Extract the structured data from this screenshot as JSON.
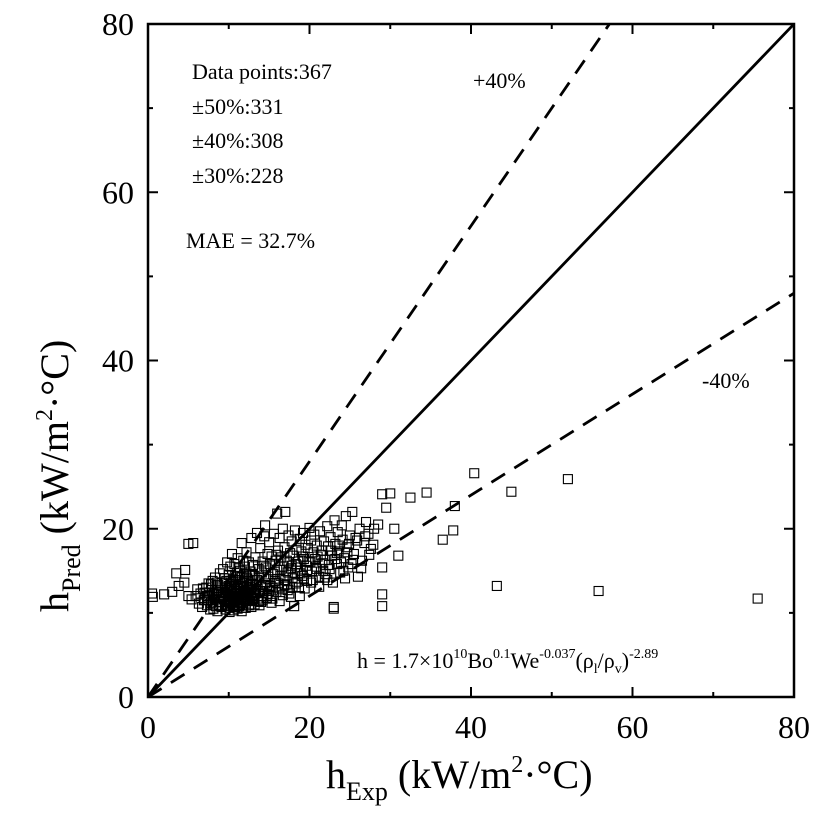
{
  "chart_data": {
    "type": "scatter",
    "x_axis": {
      "label_main": "h",
      "label_sub": "Exp",
      "label_unit_pre": " (kW/m",
      "label_sup": "2",
      "label_unit_post": "·°C)",
      "range": [
        0,
        80
      ],
      "ticks": [
        0,
        20,
        40,
        60,
        80
      ]
    },
    "y_axis": {
      "label_main": "h",
      "label_sub": "Pred",
      "label_unit_pre": " (kW/m",
      "label_sup": "2",
      "label_unit_post": "·°C)",
      "range": [
        0,
        80
      ],
      "ticks": [
        0,
        20,
        40,
        60,
        80
      ]
    },
    "grid": false,
    "annotations": {
      "data_points": "Data points:367",
      "pm50": "±50%:331",
      "pm40": "±40%:308",
      "pm30": "±30%:228",
      "mae": "MAE = 32.7%",
      "plus40": "+40%",
      "minus40": "-40%"
    },
    "equation": {
      "prefix": "h = 1.7×10",
      "exp10": "10",
      "bo": "Bo",
      "bo_exp": "0.1",
      "we": "We",
      "we_exp": "-0.037",
      "open": "(ρ",
      "sub_l": "l",
      "slash": "/ρ",
      "sub_v": "v",
      "close": ")",
      "ratio_exp": "-2.89"
    },
    "reference_lines": [
      {
        "name": "y = x",
        "slope": 1.0,
        "style": "solid"
      },
      {
        "name": "+40%",
        "slope": 1.4,
        "style": "dashed"
      },
      {
        "name": "-40%",
        "slope": 0.6,
        "style": "dashed"
      }
    ],
    "points": [
      [
        0.5,
        12.3
      ],
      [
        0.6,
        11.9
      ],
      [
        2.0,
        12.2
      ],
      [
        3.0,
        12.5
      ],
      [
        3.5,
        14.7
      ],
      [
        3.8,
        13.2
      ],
      [
        4.5,
        13.6
      ],
      [
        4.6,
        15.1
      ],
      [
        5.0,
        18.2
      ],
      [
        5.6,
        18.3
      ],
      [
        5.0,
        12.0
      ],
      [
        5.4,
        11.6
      ],
      [
        5.9,
        12.0
      ],
      [
        6.1,
        12.8
      ],
      [
        6.3,
        11.1
      ],
      [
        6.5,
        12.3
      ],
      [
        6.7,
        10.7
      ],
      [
        6.9,
        11.5
      ],
      [
        7.0,
        12.4
      ],
      [
        7.2,
        13.0
      ],
      [
        7.3,
        10.9
      ],
      [
        7.4,
        11.8
      ],
      [
        7.5,
        13.5
      ],
      [
        7.6,
        12.1
      ],
      [
        7.7,
        10.4
      ],
      [
        7.8,
        11.2
      ],
      [
        7.9,
        12.7
      ],
      [
        8.0,
        13.8
      ],
      [
        8.1,
        11.5
      ],
      [
        8.2,
        12.2
      ],
      [
        8.3,
        14.2
      ],
      [
        8.4,
        10.8
      ],
      [
        8.5,
        12.9
      ],
      [
        8.6,
        11.9
      ],
      [
        8.7,
        13.3
      ],
      [
        8.8,
        12.4
      ],
      [
        8.9,
        14.7
      ],
      [
        9.0,
        11.3
      ],
      [
        9.0,
        12.7
      ],
      [
        9.1,
        13.5
      ],
      [
        9.2,
        10.9
      ],
      [
        9.3,
        12.1
      ],
      [
        9.3,
        15.2
      ],
      [
        9.4,
        11.6
      ],
      [
        9.5,
        13.0
      ],
      [
        9.5,
        14.1
      ],
      [
        9.6,
        12.4
      ],
      [
        9.7,
        11.0
      ],
      [
        9.7,
        13.8
      ],
      [
        9.8,
        12.7
      ],
      [
        9.8,
        16.0
      ],
      [
        9.9,
        11.4
      ],
      [
        10.0,
        12.0
      ],
      [
        10.0,
        13.2
      ],
      [
        10.0,
        14.5
      ],
      [
        10.1,
        10.6
      ],
      [
        10.2,
        12.5
      ],
      [
        10.2,
        15.5
      ],
      [
        10.3,
        11.7
      ],
      [
        10.3,
        13.6
      ],
      [
        10.4,
        12.2
      ],
      [
        10.4,
        17.0
      ],
      [
        10.5,
        10.9
      ],
      [
        10.5,
        14.0
      ],
      [
        10.6,
        12.8
      ],
      [
        10.6,
        11.4
      ],
      [
        10.7,
        13.1
      ],
      [
        10.7,
        15.8
      ],
      [
        10.8,
        12.0
      ],
      [
        10.8,
        10.7
      ],
      [
        10.9,
        13.9
      ],
      [
        10.9,
        12.4
      ],
      [
        11.0,
        11.2
      ],
      [
        11.0,
        14.8
      ],
      [
        11.1,
        12.9
      ],
      [
        11.1,
        16.5
      ],
      [
        11.2,
        11.7
      ],
      [
        11.2,
        13.4
      ],
      [
        11.3,
        10.8
      ],
      [
        11.3,
        12.2
      ],
      [
        11.4,
        15.0
      ],
      [
        11.4,
        13.7
      ],
      [
        11.5,
        11.5
      ],
      [
        11.5,
        12.6
      ],
      [
        11.6,
        14.3
      ],
      [
        11.6,
        18.3
      ],
      [
        11.7,
        12.1
      ],
      [
        11.7,
        10.9
      ],
      [
        11.8,
        13.2
      ],
      [
        11.8,
        16.2
      ],
      [
        11.9,
        11.8
      ],
      [
        11.9,
        14.6
      ],
      [
        12.0,
        12.5
      ],
      [
        12.0,
        15.5
      ],
      [
        12.1,
        11.1
      ],
      [
        12.1,
        13.8
      ],
      [
        12.2,
        12.3
      ],
      [
        12.2,
        17.2
      ],
      [
        12.3,
        11.6
      ],
      [
        12.3,
        14.1
      ],
      [
        12.4,
        12.8
      ],
      [
        12.5,
        10.9
      ],
      [
        12.5,
        16.0
      ],
      [
        12.6,
        13.3
      ],
      [
        12.7,
        11.9
      ],
      [
        12.7,
        14.9
      ],
      [
        12.8,
        12.4
      ],
      [
        12.8,
        18.9
      ],
      [
        12.9,
        11.4
      ],
      [
        13.0,
        13.6
      ],
      [
        13.0,
        15.7
      ],
      [
        13.1,
        12.1
      ],
      [
        13.2,
        14.4
      ],
      [
        13.2,
        11.0
      ],
      [
        13.3,
        16.6
      ],
      [
        13.4,
        12.7
      ],
      [
        13.5,
        13.9
      ],
      [
        13.5,
        19.5
      ],
      [
        13.6,
        11.7
      ],
      [
        13.7,
        15.2
      ],
      [
        13.8,
        12.4
      ],
      [
        13.9,
        17.7
      ],
      [
        14.0,
        13.1
      ],
      [
        14.0,
        11.3
      ],
      [
        14.1,
        14.8
      ],
      [
        14.2,
        16.1
      ],
      [
        14.3,
        12.0
      ],
      [
        14.4,
        19.1
      ],
      [
        14.5,
        13.5
      ],
      [
        14.5,
        20.4
      ],
      [
        14.6,
        15.4
      ],
      [
        14.7,
        11.8
      ],
      [
        14.8,
        17.0
      ],
      [
        14.9,
        14.0
      ],
      [
        15.0,
        12.6
      ],
      [
        15.0,
        18.4
      ],
      [
        15.1,
        15.8
      ],
      [
        15.2,
        13.2
      ],
      [
        15.3,
        16.7
      ],
      [
        15.4,
        11.7
      ],
      [
        15.5,
        14.6
      ],
      [
        15.6,
        19.4
      ],
      [
        15.7,
        13.8
      ],
      [
        15.8,
        16.2
      ],
      [
        15.9,
        12.5
      ],
      [
        16.0,
        15.1
      ],
      [
        16.0,
        21.8
      ],
      [
        16.1,
        17.4
      ],
      [
        16.2,
        13.5
      ],
      [
        16.3,
        18.9
      ],
      [
        16.4,
        14.4
      ],
      [
        16.5,
        16.6
      ],
      [
        16.6,
        12.8
      ],
      [
        16.7,
        20.0
      ],
      [
        16.8,
        15.5
      ],
      [
        16.9,
        17.8
      ],
      [
        17.0,
        13.9
      ],
      [
        17.0,
        22.0
      ],
      [
        17.2,
        16.2
      ],
      [
        17.3,
        14.8
      ],
      [
        17.4,
        19.2
      ],
      [
        17.5,
        12.3
      ],
      [
        17.6,
        17.1
      ],
      [
        17.7,
        15.3
      ],
      [
        17.8,
        18.5
      ],
      [
        17.9,
        14.1
      ],
      [
        18.0,
        16.8
      ],
      [
        18.1,
        10.8
      ],
      [
        18.2,
        19.8
      ],
      [
        18.3,
        15.8
      ],
      [
        18.4,
        17.5
      ],
      [
        18.5,
        13.7
      ],
      [
        18.6,
        16.1
      ],
      [
        18.8,
        18.8
      ],
      [
        18.9,
        15.0
      ],
      [
        19.0,
        17.3
      ],
      [
        19.1,
        14.4
      ],
      [
        19.2,
        19.5
      ],
      [
        19.3,
        16.4
      ],
      [
        19.5,
        18.1
      ],
      [
        19.6,
        15.6
      ],
      [
        19.7,
        13.8
      ],
      [
        19.8,
        17.7
      ],
      [
        20.0,
        20.1
      ],
      [
        20.1,
        16.0
      ],
      [
        20.2,
        18.6
      ],
      [
        20.3,
        14.9
      ],
      [
        20.5,
        17.2
      ],
      [
        20.6,
        19.3
      ],
      [
        20.8,
        15.5
      ],
      [
        20.9,
        18.0
      ],
      [
        21.0,
        16.7
      ],
      [
        21.2,
        14.3
      ],
      [
        21.3,
        19.7
      ],
      [
        21.5,
        17.4
      ],
      [
        21.6,
        15.9
      ],
      [
        21.8,
        18.5
      ],
      [
        21.9,
        16.3
      ],
      [
        22.0,
        14.6
      ],
      [
        22.2,
        20.3
      ],
      [
        22.3,
        17.9
      ],
      [
        22.5,
        15.2
      ],
      [
        22.6,
        19.0
      ],
      [
        22.8,
        16.8
      ],
      [
        23.0,
        10.5
      ],
      [
        23.0,
        10.7
      ],
      [
        23.1,
        21.0
      ],
      [
        23.2,
        18.2
      ],
      [
        23.4,
        15.8
      ],
      [
        23.5,
        19.6
      ],
      [
        23.6,
        17.3
      ],
      [
        23.8,
        14.8
      ],
      [
        24.0,
        20.4
      ],
      [
        24.1,
        18.7
      ],
      [
        24.3,
        16.5
      ],
      [
        24.5,
        21.5
      ],
      [
        24.6,
        17.8
      ],
      [
        24.8,
        15.4
      ],
      [
        25.0,
        19.2
      ],
      [
        25.3,
        22.0
      ],
      [
        25.5,
        17.0
      ],
      [
        25.7,
        18.9
      ],
      [
        26.0,
        14.3
      ],
      [
        26.2,
        20.0
      ],
      [
        26.5,
        16.2
      ],
      [
        26.8,
        18.3
      ],
      [
        27.0,
        20.8
      ],
      [
        27.3,
        19.4
      ],
      [
        27.6,
        17.6
      ],
      [
        28.0,
        20.0
      ],
      [
        28.5,
        20.5
      ],
      [
        29.0,
        15.4
      ],
      [
        29.0,
        24.1
      ],
      [
        29.0,
        12.2
      ],
      [
        29.0,
        10.8
      ],
      [
        29.5,
        22.5
      ],
      [
        30.0,
        24.2
      ],
      [
        30.5,
        20.0
      ],
      [
        31.0,
        16.8
      ],
      [
        32.5,
        23.7
      ],
      [
        34.5,
        24.3
      ],
      [
        36.5,
        18.7
      ],
      [
        37.8,
        19.8
      ],
      [
        38.0,
        22.7
      ],
      [
        40.4,
        26.6
      ],
      [
        43.2,
        13.2
      ],
      [
        45.0,
        24.4
      ],
      [
        52.0,
        25.9
      ],
      [
        55.8,
        12.6
      ],
      [
        75.5,
        11.7
      ],
      [
        8.1,
        10.5
      ],
      [
        8.6,
        10.2
      ],
      [
        9.1,
        10.7
      ],
      [
        9.6,
        10.4
      ],
      [
        10.1,
        10.1
      ],
      [
        10.6,
        10.3
      ],
      [
        11.1,
        10.5
      ],
      [
        11.6,
        10.2
      ],
      [
        12.1,
        10.6
      ],
      [
        6.8,
        12.9
      ],
      [
        7.3,
        12.0
      ],
      [
        7.8,
        13.4
      ],
      [
        8.3,
        11.6
      ],
      [
        8.8,
        10.9
      ],
      [
        9.3,
        11.9
      ],
      [
        9.8,
        10.8
      ],
      [
        10.3,
        12.9
      ],
      [
        10.8,
        14.4
      ],
      [
        11.3,
        11.9
      ],
      [
        11.8,
        10.6
      ],
      [
        12.3,
        13.0
      ],
      [
        12.8,
        10.7
      ],
      [
        13.3,
        12.3
      ],
      [
        13.8,
        10.9
      ],
      [
        14.3,
        13.3
      ],
      [
        14.8,
        12.2
      ],
      [
        15.3,
        11.2
      ],
      [
        15.8,
        13.6
      ],
      [
        16.3,
        11.4
      ],
      [
        16.8,
        14.2
      ],
      [
        17.3,
        12.7
      ],
      [
        17.8,
        15.6
      ],
      [
        18.3,
        13.5
      ],
      [
        18.8,
        12.0
      ],
      [
        19.3,
        14.1
      ],
      [
        9.5,
        11.7
      ],
      [
        10.0,
        11.5
      ],
      [
        10.5,
        11.9
      ],
      [
        11.0,
        12.3
      ],
      [
        11.5,
        11.2
      ],
      [
        12.0,
        11.9
      ],
      [
        12.5,
        12.7
      ],
      [
        13.0,
        11.6
      ],
      [
        7.0,
        11.6
      ],
      [
        7.5,
        12.4
      ],
      [
        8.0,
        11.0
      ],
      [
        8.5,
        13.6
      ],
      [
        9.0,
        12.1
      ],
      [
        10.2,
        13.8
      ],
      [
        10.7,
        12.6
      ],
      [
        11.2,
        15.3
      ],
      [
        11.7,
        13.5
      ],
      [
        12.2,
        14.7
      ],
      [
        12.7,
        13.1
      ],
      [
        13.2,
        12.9
      ],
      [
        13.7,
        14.3
      ],
      [
        14.2,
        11.5
      ],
      [
        14.7,
        13.3
      ],
      [
        15.2,
        12.0
      ],
      [
        15.7,
        14.9
      ],
      [
        16.2,
        13.0
      ],
      [
        16.7,
        12.1
      ],
      [
        17.2,
        13.4
      ],
      [
        17.7,
        11.9
      ],
      [
        18.2,
        14.7
      ],
      [
        18.7,
        13.0
      ],
      [
        19.2,
        16.7
      ],
      [
        19.7,
        15.1
      ],
      [
        20.2,
        13.6
      ],
      [
        20.7,
        16.4
      ],
      [
        21.2,
        13.1
      ],
      [
        21.7,
        15.0
      ],
      [
        22.2,
        13.9
      ],
      [
        22.7,
        17.4
      ],
      [
        23.2,
        16.4
      ],
      [
        23.7,
        18.0
      ],
      [
        24.2,
        15.0
      ],
      [
        24.7,
        17.2
      ],
      [
        25.2,
        15.8
      ],
      [
        10.4,
        13.4
      ],
      [
        10.9,
        11.9
      ],
      [
        11.4,
        14.2
      ],
      [
        11.9,
        13.0
      ],
      [
        12.4,
        11.5
      ],
      [
        12.9,
        14.5
      ],
      [
        13.4,
        13.3
      ],
      [
        13.9,
        12.6
      ],
      [
        14.4,
        15.6
      ],
      [
        14.9,
        14.3
      ],
      [
        15.4,
        13.0
      ],
      [
        15.9,
        16.9
      ],
      [
        16.4,
        15.1
      ],
      [
        16.9,
        13.3
      ],
      [
        17.4,
        16.0
      ],
      [
        17.9,
        13.1
      ],
      [
        18.4,
        15.4
      ],
      [
        18.9,
        14.7
      ],
      [
        19.4,
        12.9
      ],
      [
        19.9,
        16.1
      ],
      [
        20.4,
        13.9
      ],
      [
        20.9,
        15.2
      ],
      [
        21.4,
        16.9
      ],
      [
        21.9,
        14.2
      ],
      [
        22.4,
        15.7
      ],
      [
        22.9,
        13.6
      ],
      [
        23.4,
        17.1
      ],
      [
        23.9,
        16.0
      ],
      [
        24.4,
        14.1
      ],
      [
        24.9,
        18.2
      ],
      [
        25.4,
        16.3
      ],
      [
        25.9,
        18.6
      ],
      [
        26.4,
        15.3
      ],
      [
        26.9,
        19.1
      ],
      [
        27.4,
        16.9
      ],
      [
        27.9,
        18.1
      ],
      [
        9.2,
        12.5
      ],
      [
        9.7,
        12.3
      ],
      [
        10.2,
        11.3
      ],
      [
        10.7,
        11.6
      ],
      [
        11.2,
        11.0
      ],
      [
        11.7,
        12.4
      ],
      [
        12.2,
        11.4
      ],
      [
        12.7,
        12.0
      ],
      [
        13.2,
        11.8
      ],
      [
        13.7,
        11.4
      ],
      [
        14.2,
        12.6
      ],
      [
        14.7,
        11.7
      ]
    ]
  }
}
